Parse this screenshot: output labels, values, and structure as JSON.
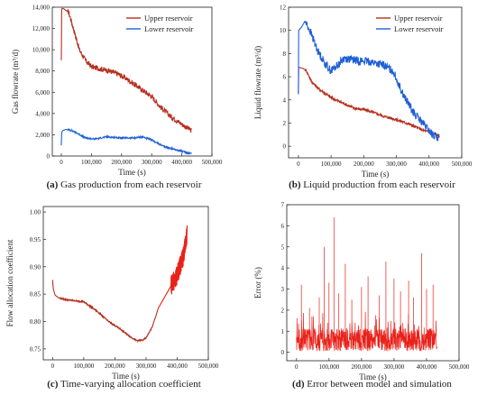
{
  "colors": {
    "upper": "#b5301f",
    "lower": "#1f5fd6",
    "red": "#e8221b",
    "axis": "#222222"
  },
  "panels": [
    {
      "caption": {
        "letter": "(a)",
        "text": "Gas production from each reservoir"
      },
      "chart_data": {
        "type": "line",
        "title": "",
        "xlabel": "Time (s)",
        "ylabel": "Gas flowrate (m³/d)",
        "xlim": [
          -30000,
          500000
        ],
        "ylim": [
          0,
          14000
        ],
        "xticks": [
          0,
          100000,
          200000,
          300000,
          400000,
          500000
        ],
        "xtick_labels": [
          "0",
          "100,000",
          "200,000",
          "300,000",
          "400,000",
          "500,000"
        ],
        "yticks": [
          0,
          2000,
          4000,
          6000,
          8000,
          10000,
          12000,
          14000
        ],
        "ytick_labels": [
          "0",
          "2,000",
          "4,000",
          "6,000",
          "8,000",
          "10,000",
          "12,000",
          "14,000"
        ],
        "legend": "top-right",
        "series": [
          {
            "name": "Upper reservoir",
            "color_key": "upper",
            "noise": 250,
            "x": [
              0,
              1000,
              3000,
              8000,
              15000,
              25000,
              40000,
              60000,
              80000,
              100000,
              130000,
              160000,
              190000,
              220000,
              250000,
              280000,
              300000,
              330000,
              360000,
              390000,
              420000,
              432000
            ],
            "y": [
              9000,
              13800,
              13900,
              13850,
              13700,
              13500,
              12000,
              10000,
              9000,
              8400,
              8200,
              8000,
              7700,
              7200,
              6600,
              6000,
              5600,
              4600,
              3800,
              3200,
              2600,
              2400
            ]
          },
          {
            "name": "Lower reservoir",
            "color_key": "lower",
            "noise": 80,
            "x": [
              0,
              1000,
              5000,
              15000,
              30000,
              50000,
              80000,
              110000,
              150000,
              200000,
              240000,
              270000,
              300000,
              340000,
              380000,
              420000,
              432000
            ],
            "y": [
              1000,
              2200,
              2400,
              2500,
              2450,
              2200,
              1700,
              1600,
              1800,
              1700,
              1700,
              1800,
              1500,
              900,
              600,
              300,
              250
            ]
          }
        ]
      }
    },
    {
      "caption": {
        "letter": "(b)",
        "text": "Liquid production from each reservoir"
      },
      "chart_data": {
        "type": "line",
        "title": "",
        "xlabel": "Time (s)",
        "ylabel": "Liquid flowrate (m³/d)",
        "xlim": [
          -30000,
          500000
        ],
        "ylim": [
          -1,
          12
        ],
        "xticks": [
          0,
          100000,
          200000,
          300000,
          400000,
          500000
        ],
        "xtick_labels": [
          "0",
          "100,000",
          "200,000",
          "300,000",
          "400,000",
          "500,000"
        ],
        "yticks": [
          0,
          2,
          4,
          6,
          8,
          10,
          12
        ],
        "ytick_labels": [
          "0",
          "2",
          "4",
          "6",
          "8",
          "10",
          "12"
        ],
        "legend": "top-right",
        "series": [
          {
            "name": "Upper reservoir",
            "color_key": "upper",
            "noise": 0.12,
            "x": [
              0,
              1000,
              5000,
              15000,
              25000,
              40000,
              60000,
              80000,
              100000,
              130000,
              170000,
              210000,
              260000,
              300000,
              340000,
              380000,
              410000,
              432000
            ],
            "y": [
              4.5,
              6.8,
              6.8,
              6.7,
              6.5,
              5.6,
              5.0,
              4.6,
              4.2,
              3.8,
              3.3,
              3.1,
              2.6,
              2.3,
              1.9,
              1.4,
              1.1,
              0.9
            ]
          },
          {
            "name": "Lower reservoir",
            "color_key": "lower",
            "noise": 0.35,
            "x": [
              0,
              1000,
              10000,
              20000,
              35000,
              60000,
              80000,
              100000,
              120000,
              140000,
              180000,
              220000,
              260000,
              290000,
              320000,
              350000,
              380000,
              410000,
              432000
            ],
            "y": [
              4.5,
              10.0,
              10.3,
              10.8,
              10.0,
              8.2,
              7.2,
              6.5,
              7.0,
              7.6,
              7.4,
              7.3,
              7.0,
              6.5,
              4.5,
              3.0,
              2.0,
              1.0,
              0.7
            ]
          }
        ]
      }
    },
    {
      "caption": {
        "letter": "(c)",
        "text": "Time-varying allocation coefficient"
      },
      "chart_data": {
        "type": "line",
        "title": "",
        "xlabel": "Time (s)",
        "ylabel": "Flow allocation coefficient",
        "xlim": [
          -30000,
          500000
        ],
        "ylim": [
          0.73,
          1.01
        ],
        "xticks": [
          0,
          100000,
          200000,
          300000,
          400000,
          500000
        ],
        "xtick_labels": [
          "0",
          "100,000",
          "200,000",
          "300,000",
          "400,000",
          "500,000"
        ],
        "yticks": [
          0.75,
          0.8,
          0.85,
          0.9,
          0.95,
          1.0
        ],
        "ytick_labels": [
          "0.75",
          "0.80",
          "0.85",
          "0.90",
          "0.95",
          "1.00"
        ],
        "legend": "none",
        "series": [
          {
            "name": "",
            "color_key": "upper",
            "noise": 0.0012,
            "x": [
              0,
              2000,
              8000,
              20000,
              40000,
              70000,
              100000,
              140000,
              180000,
              220000,
              250000,
              270000,
              290000,
              300000,
              320000,
              340000
            ],
            "y": [
              0.876,
              0.86,
              0.848,
              0.843,
              0.84,
              0.838,
              0.836,
              0.82,
              0.8,
              0.785,
              0.772,
              0.765,
              0.766,
              0.77,
              0.79,
              0.825
            ]
          },
          {
            "name": "",
            "color_key": "red",
            "noise": 0.018,
            "x": [
              340000,
              360000,
              380000,
              400000,
              420000,
              432000
            ],
            "y": [
              0.825,
              0.845,
              0.865,
              0.885,
              0.92,
              0.96
            ]
          }
        ]
      }
    },
    {
      "caption": {
        "letter": "(d)",
        "text": "Error between model and simulation"
      },
      "chart_data": {
        "type": "line",
        "title": "",
        "xlabel": "Time (s)",
        "ylabel": "Error (%)",
        "xlim": [
          -30000,
          500000
        ],
        "ylim": [
          -0.4,
          7
        ],
        "xticks": [
          0,
          100000,
          200000,
          300000,
          400000,
          500000
        ],
        "xtick_labels": [
          "0",
          "100,000",
          "200,000",
          "300,000",
          "400,000",
          "500,000"
        ],
        "yticks": [
          0,
          1,
          2,
          3,
          4,
          5,
          6,
          7
        ],
        "ytick_labels": [
          "0",
          "1",
          "2",
          "3",
          "4",
          "5",
          "6",
          "7"
        ],
        "legend": "none",
        "series": [
          {
            "name": "",
            "color_key": "red",
            "noise": 0,
            "spikes_x": [
              15000,
              40000,
              70000,
              85000,
              100000,
              115000,
              130000,
              150000,
              170000,
              200000,
              220000,
              255000,
              275000,
              300000,
              320000,
              345000,
              360000,
              385000,
              400000,
              420000
            ],
            "spikes_y": [
              3.2,
              2.1,
              2.6,
              5.0,
              3.3,
              6.4,
              2.8,
              4.2,
              2.5,
              3.1,
              3.6,
              2.7,
              4.3,
              3.5,
              2.9,
              3.4,
              2.6,
              4.7,
              3.0,
              3.2
            ]
          }
        ]
      }
    }
  ]
}
